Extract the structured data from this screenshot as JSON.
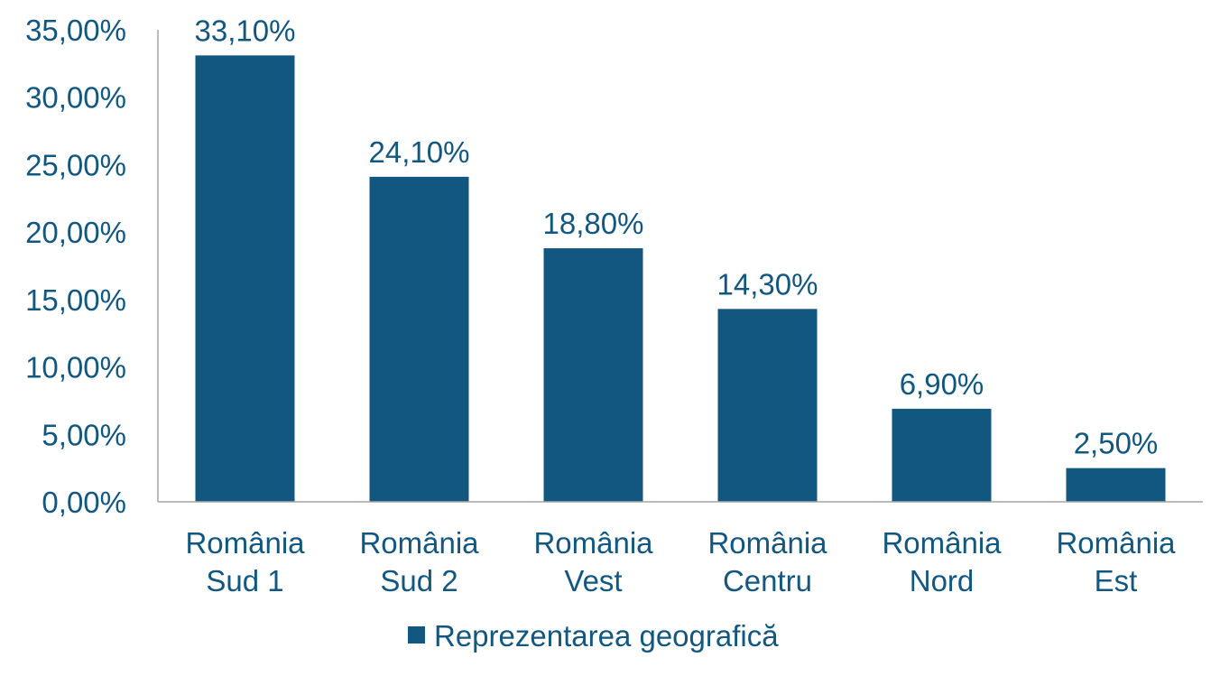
{
  "chart_data": {
    "type": "bar",
    "categories": [
      [
        "România",
        "Sud 1"
      ],
      [
        "România",
        "Sud 2"
      ],
      [
        "România",
        "Vest"
      ],
      [
        "România",
        "Centru"
      ],
      [
        "România",
        "Nord"
      ],
      [
        "România",
        "Est"
      ]
    ],
    "series": [
      {
        "name": "Reprezentarea geografică",
        "values": [
          33.1,
          24.1,
          18.8,
          14.3,
          6.9,
          2.5
        ],
        "labels": [
          "33,10%",
          "24,10%",
          "18,80%",
          "14,30%",
          "6,90%",
          "2,50%"
        ],
        "color": "#125780"
      }
    ],
    "ylim": [
      0,
      35
    ],
    "yticks": [
      "0,00%",
      "5,00%",
      "10,00%",
      "15,00%",
      "20,00%",
      "25,00%",
      "30,00%",
      "35,00%"
    ],
    "ytick_values": [
      0,
      5,
      10,
      15,
      20,
      25,
      30,
      35
    ],
    "grid": false,
    "legend": "bottom-center",
    "text_color": "#125780",
    "axis_color": "#a6a6a6"
  }
}
